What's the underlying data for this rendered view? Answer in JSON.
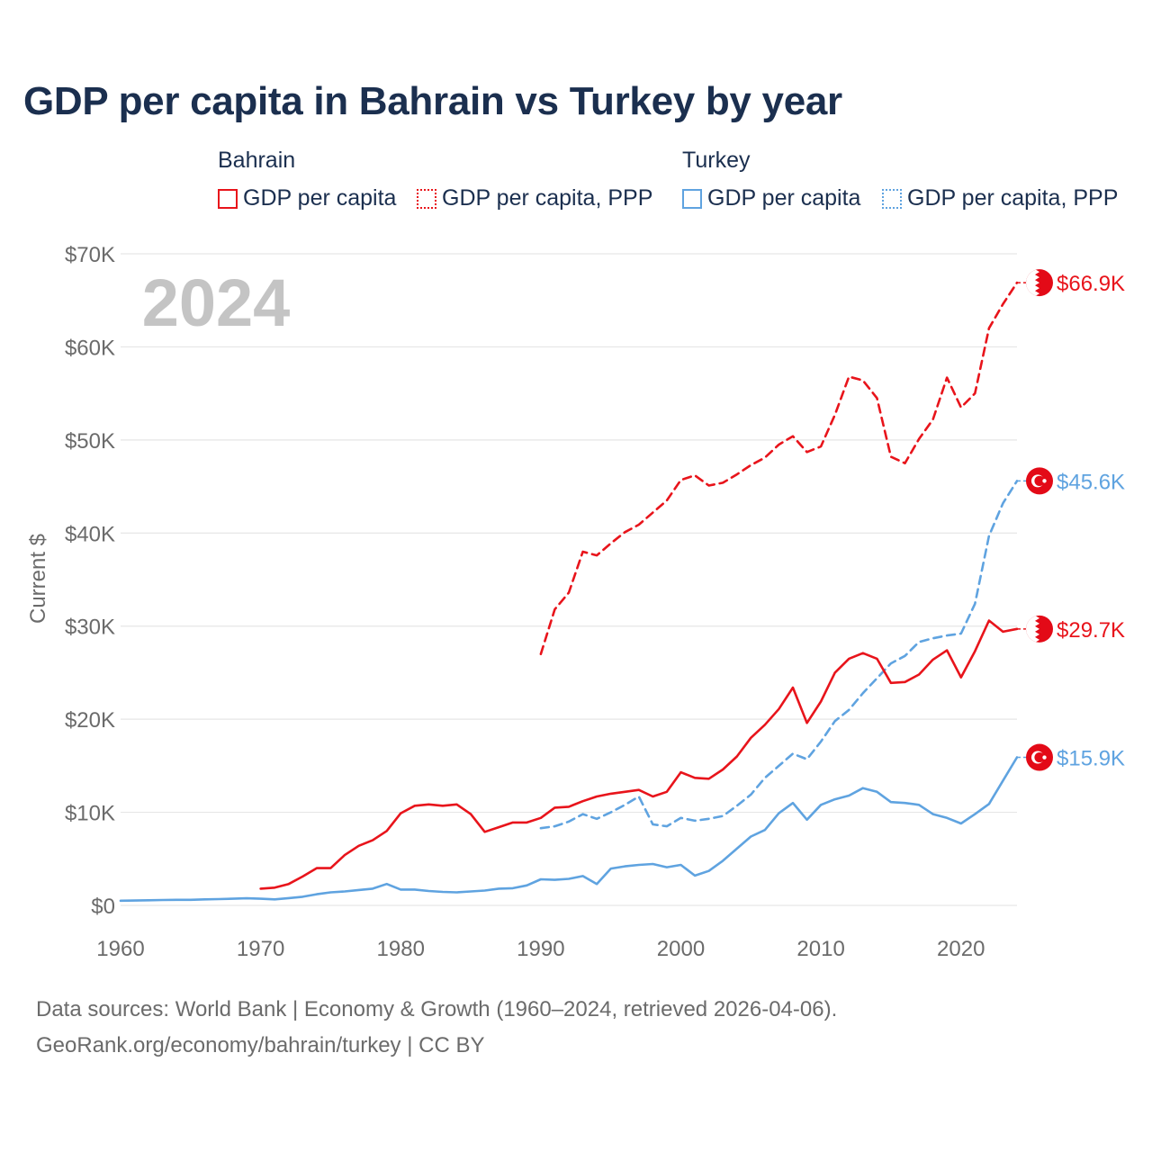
{
  "title": "GDP per capita in Bahrain vs Turkey by year",
  "legend": {
    "groups": [
      {
        "name": "Bahrain",
        "items": [
          {
            "label": "GDP per capita",
            "color": "#e8141b",
            "style": "solid"
          },
          {
            "label": "GDP per capita, PPP",
            "color": "#e8141b",
            "style": "dotted"
          }
        ]
      },
      {
        "name": "Turkey",
        "items": [
          {
            "label": "GDP per capita",
            "color": "#5fa3e0",
            "style": "solid"
          },
          {
            "label": "GDP per capita, PPP",
            "color": "#5fa3e0",
            "style": "dotted"
          }
        ]
      }
    ]
  },
  "year_label": "2024",
  "footer": {
    "line1": "Data sources: World Bank | Economy & Growth (1960–2024, retrieved 2026-04-06).",
    "line2": "GeoRank.org/economy/bahrain/turkey | CC BY"
  },
  "chart_data": {
    "type": "line",
    "title": "GDP per capita in Bahrain vs Turkey by year",
    "xlabel": "",
    "ylabel": "Current $",
    "xlim": [
      1960,
      2024
    ],
    "ylim": [
      0,
      70000
    ],
    "x_ticks": [
      1960,
      1970,
      1980,
      1990,
      2000,
      2010,
      2020
    ],
    "y_ticks": [
      {
        "value": 0,
        "label": "$0"
      },
      {
        "value": 10000,
        "label": "$10K"
      },
      {
        "value": 20000,
        "label": "$20K"
      },
      {
        "value": 30000,
        "label": "$30K"
      },
      {
        "value": 40000,
        "label": "$40K"
      },
      {
        "value": 50000,
        "label": "$50K"
      },
      {
        "value": 60000,
        "label": "$60K"
      },
      {
        "value": 70000,
        "label": "$70K"
      }
    ],
    "grid": true,
    "series": [
      {
        "name": "Bahrain GDP per capita, PPP",
        "country": "Bahrain",
        "color": "#e8141b",
        "dash": "dashed",
        "end_label": "$66.9K",
        "points": [
          [
            1990,
            27000
          ],
          [
            1991,
            31800
          ],
          [
            1992,
            33600
          ],
          [
            1993,
            38000
          ],
          [
            1994,
            37600
          ],
          [
            1995,
            38900
          ],
          [
            1996,
            40100
          ],
          [
            1997,
            40900
          ],
          [
            1998,
            42200
          ],
          [
            1999,
            43500
          ],
          [
            2000,
            45700
          ],
          [
            2001,
            46200
          ],
          [
            2002,
            45100
          ],
          [
            2003,
            45400
          ],
          [
            2004,
            46300
          ],
          [
            2005,
            47300
          ],
          [
            2006,
            48100
          ],
          [
            2007,
            49500
          ],
          [
            2008,
            50400
          ],
          [
            2009,
            48700
          ],
          [
            2010,
            49300
          ],
          [
            2011,
            52700
          ],
          [
            2012,
            56800
          ],
          [
            2013,
            56400
          ],
          [
            2014,
            54500
          ],
          [
            2015,
            48200
          ],
          [
            2016,
            47500
          ],
          [
            2017,
            50100
          ],
          [
            2018,
            52200
          ],
          [
            2019,
            56700
          ],
          [
            2020,
            53500
          ],
          [
            2021,
            55000
          ],
          [
            2022,
            62000
          ],
          [
            2023,
            64600
          ],
          [
            2024,
            66900
          ]
        ]
      },
      {
        "name": "Turkey GDP per capita, PPP",
        "country": "Turkey",
        "color": "#5fa3e0",
        "dash": "dashed",
        "end_label": "$45.6K",
        "points": [
          [
            1990,
            8300
          ],
          [
            1991,
            8500
          ],
          [
            1992,
            9000
          ],
          [
            1993,
            9800
          ],
          [
            1994,
            9300
          ],
          [
            1995,
            10000
          ],
          [
            1996,
            10800
          ],
          [
            1997,
            11700
          ],
          [
            1998,
            8700
          ],
          [
            1999,
            8500
          ],
          [
            2000,
            9400
          ],
          [
            2001,
            9100
          ],
          [
            2002,
            9300
          ],
          [
            2003,
            9600
          ],
          [
            2004,
            10700
          ],
          [
            2005,
            11900
          ],
          [
            2006,
            13700
          ],
          [
            2007,
            15000
          ],
          [
            2008,
            16300
          ],
          [
            2009,
            15700
          ],
          [
            2010,
            17600
          ],
          [
            2011,
            19800
          ],
          [
            2012,
            21000
          ],
          [
            2013,
            22800
          ],
          [
            2014,
            24400
          ],
          [
            2015,
            26000
          ],
          [
            2016,
            26800
          ],
          [
            2017,
            28300
          ],
          [
            2018,
            28700
          ],
          [
            2019,
            29000
          ],
          [
            2020,
            29200
          ],
          [
            2021,
            32400
          ],
          [
            2022,
            39700
          ],
          [
            2023,
            43200
          ],
          [
            2024,
            45600
          ]
        ]
      },
      {
        "name": "Bahrain GDP per capita",
        "country": "Bahrain",
        "color": "#e8141b",
        "dash": "solid",
        "end_label": "$29.7K",
        "points": [
          [
            1970,
            1800
          ],
          [
            1971,
            1900
          ],
          [
            1972,
            2300
          ],
          [
            1973,
            3100
          ],
          [
            1974,
            4000
          ],
          [
            1975,
            4000
          ],
          [
            1976,
            5400
          ],
          [
            1977,
            6400
          ],
          [
            1978,
            7000
          ],
          [
            1979,
            8000
          ],
          [
            1980,
            9900
          ],
          [
            1981,
            10700
          ],
          [
            1982,
            10850
          ],
          [
            1983,
            10700
          ],
          [
            1984,
            10850
          ],
          [
            1985,
            9800
          ],
          [
            1986,
            7900
          ],
          [
            1987,
            8400
          ],
          [
            1988,
            8900
          ],
          [
            1989,
            8900
          ],
          [
            1990,
            9400
          ],
          [
            1991,
            10500
          ],
          [
            1992,
            10600
          ],
          [
            1993,
            11200
          ],
          [
            1994,
            11700
          ],
          [
            1995,
            12000
          ],
          [
            1996,
            12200
          ],
          [
            1997,
            12400
          ],
          [
            1998,
            11700
          ],
          [
            1999,
            12200
          ],
          [
            2000,
            14300
          ],
          [
            2001,
            13700
          ],
          [
            2002,
            13600
          ],
          [
            2003,
            14600
          ],
          [
            2004,
            16000
          ],
          [
            2005,
            18000
          ],
          [
            2006,
            19400
          ],
          [
            2007,
            21100
          ],
          [
            2008,
            23400
          ],
          [
            2009,
            19600
          ],
          [
            2010,
            21900
          ],
          [
            2011,
            25000
          ],
          [
            2012,
            26500
          ],
          [
            2013,
            27100
          ],
          [
            2014,
            26500
          ],
          [
            2015,
            23900
          ],
          [
            2016,
            24000
          ],
          [
            2017,
            24800
          ],
          [
            2018,
            26400
          ],
          [
            2019,
            27400
          ],
          [
            2020,
            24500
          ],
          [
            2021,
            27300
          ],
          [
            2022,
            30600
          ],
          [
            2023,
            29400
          ],
          [
            2024,
            29700
          ]
        ]
      },
      {
        "name": "Turkey GDP per capita",
        "country": "Turkey",
        "color": "#5fa3e0",
        "dash": "solid",
        "end_label": "$15.9K",
        "points": [
          [
            1960,
            500
          ],
          [
            1961,
            520
          ],
          [
            1962,
            550
          ],
          [
            1963,
            580
          ],
          [
            1964,
            600
          ],
          [
            1965,
            600
          ],
          [
            1966,
            650
          ],
          [
            1967,
            680
          ],
          [
            1968,
            720
          ],
          [
            1969,
            760
          ],
          [
            1970,
            720
          ],
          [
            1971,
            650
          ],
          [
            1972,
            780
          ],
          [
            1973,
            930
          ],
          [
            1974,
            1200
          ],
          [
            1975,
            1400
          ],
          [
            1976,
            1500
          ],
          [
            1977,
            1650
          ],
          [
            1978,
            1800
          ],
          [
            1979,
            2300
          ],
          [
            1980,
            1700
          ],
          [
            1981,
            1700
          ],
          [
            1982,
            1550
          ],
          [
            1983,
            1450
          ],
          [
            1984,
            1400
          ],
          [
            1985,
            1500
          ],
          [
            1986,
            1600
          ],
          [
            1987,
            1800
          ],
          [
            1988,
            1850
          ],
          [
            1989,
            2150
          ],
          [
            1990,
            2800
          ],
          [
            1991,
            2750
          ],
          [
            1992,
            2850
          ],
          [
            1993,
            3150
          ],
          [
            1994,
            2300
          ],
          [
            1995,
            3950
          ],
          [
            1996,
            4200
          ],
          [
            1997,
            4350
          ],
          [
            1998,
            4450
          ],
          [
            1999,
            4100
          ],
          [
            2000,
            4350
          ],
          [
            2001,
            3200
          ],
          [
            2002,
            3700
          ],
          [
            2003,
            4800
          ],
          [
            2004,
            6100
          ],
          [
            2005,
            7400
          ],
          [
            2006,
            8100
          ],
          [
            2007,
            9900
          ],
          [
            2008,
            11000
          ],
          [
            2009,
            9200
          ],
          [
            2010,
            10800
          ],
          [
            2011,
            11400
          ],
          [
            2012,
            11800
          ],
          [
            2013,
            12600
          ],
          [
            2014,
            12200
          ],
          [
            2015,
            11100
          ],
          [
            2016,
            11000
          ],
          [
            2017,
            10800
          ],
          [
            2018,
            9800
          ],
          [
            2019,
            9400
          ],
          [
            2020,
            8800
          ],
          [
            2021,
            9800
          ],
          [
            2022,
            10900
          ],
          [
            2023,
            13400
          ],
          [
            2024,
            15900
          ]
        ]
      }
    ]
  }
}
